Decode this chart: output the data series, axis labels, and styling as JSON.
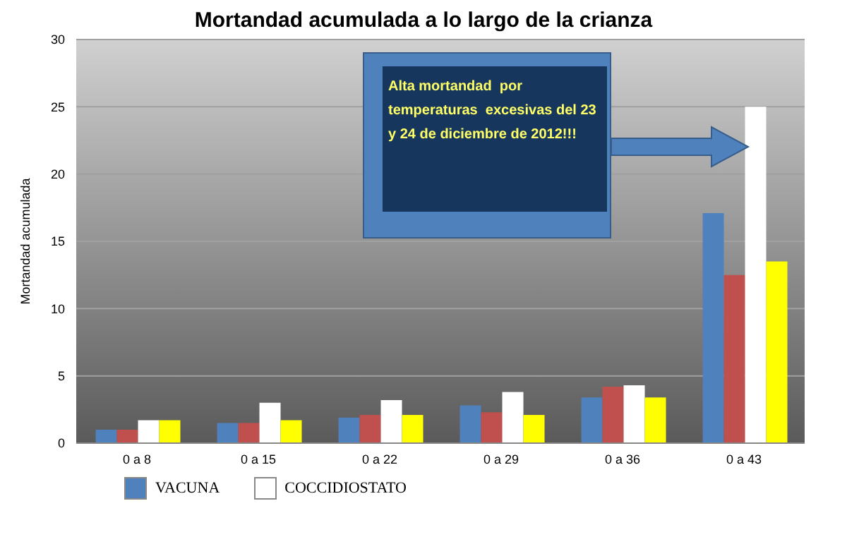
{
  "chart_data": {
    "type": "bar",
    "title": "Mortandad acumulada a lo largo de la crianza",
    "ylabel": "Mortandad acumulada",
    "categories": [
      "0 a 8",
      "0 a 15",
      "0 a 22",
      "0 a 29",
      "0 a 36",
      "0 a 43"
    ],
    "series": [
      {
        "name": "VACUNA",
        "color": "#4f81bd",
        "values": [
          1.0,
          1.5,
          1.9,
          2.8,
          3.4,
          17.1
        ]
      },
      {
        "color": "#c0504d",
        "values": [
          1.0,
          1.5,
          2.1,
          2.3,
          4.2,
          12.5
        ]
      },
      {
        "name": "COCCIDIOSTATO",
        "color": "#ffffff",
        "values": [
          1.7,
          3.0,
          3.2,
          3.8,
          4.3,
          25.0
        ]
      },
      {
        "color": "#ffff00",
        "values": [
          1.7,
          1.7,
          2.1,
          2.1,
          3.4,
          13.5
        ]
      }
    ],
    "ylim": [
      0,
      30
    ],
    "yticks": [
      0,
      5,
      10,
      15,
      20,
      25,
      30
    ],
    "grid": "y",
    "legend": "bottom",
    "annotations": [
      "Alta mortandad  por temperaturas  excesivas del 23 y 24 de diciembre de 2012!!!"
    ]
  }
}
